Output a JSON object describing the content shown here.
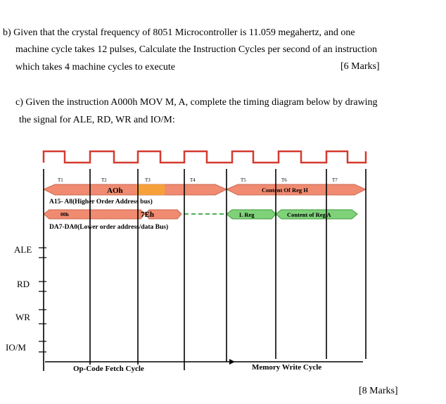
{
  "question_b": {
    "line1": "b) Given that the crystal frequency of 8051 Microcontroller is 11.059 megahertz, and one",
    "line2": "machine cycle takes 12 pulses, Calculate the Instruction Cycles per second of an instruction",
    "line3": "which takes 4 machine cycles to execute",
    "marks": "[6 Marks]"
  },
  "question_c": {
    "line1": "c) Given the instruction A000h MOV M, A, complete the timing diagram below by drawing",
    "line2": "the signal for ALE, RD, WR and IO/M:",
    "marks": "[8 Marks]"
  },
  "diagram": {
    "t_states": [
      "T1",
      "T2",
      "T3",
      "T4",
      "T5",
      "T6",
      "T7"
    ],
    "bus_high_labels": {
      "aoh": "AOh",
      "content_h": "Content Of Reg H",
      "desc": "A15- A8(Higher Order Address bus)"
    },
    "bus_low_labels": {
      "code": "00h",
      "data": "7Eh",
      "l_reg": "L Reg",
      "content_a": "Content of Reg A",
      "desc": "DA7-DA0(Lower order address/data Bus)"
    },
    "signals": [
      "ALE",
      "RD",
      "WR",
      "IO/M"
    ],
    "cycles": {
      "opcode": "Op-Code Fetch Cycle",
      "memory_write": "Memory Write Cycle"
    },
    "colors": {
      "clock": "#d43a2f",
      "high_bus": "#f08a70",
      "orange_block": "#f5a03a",
      "green_bus": "#7fd17a",
      "green_dashes": "#4caf50",
      "divider": "#000000"
    }
  }
}
